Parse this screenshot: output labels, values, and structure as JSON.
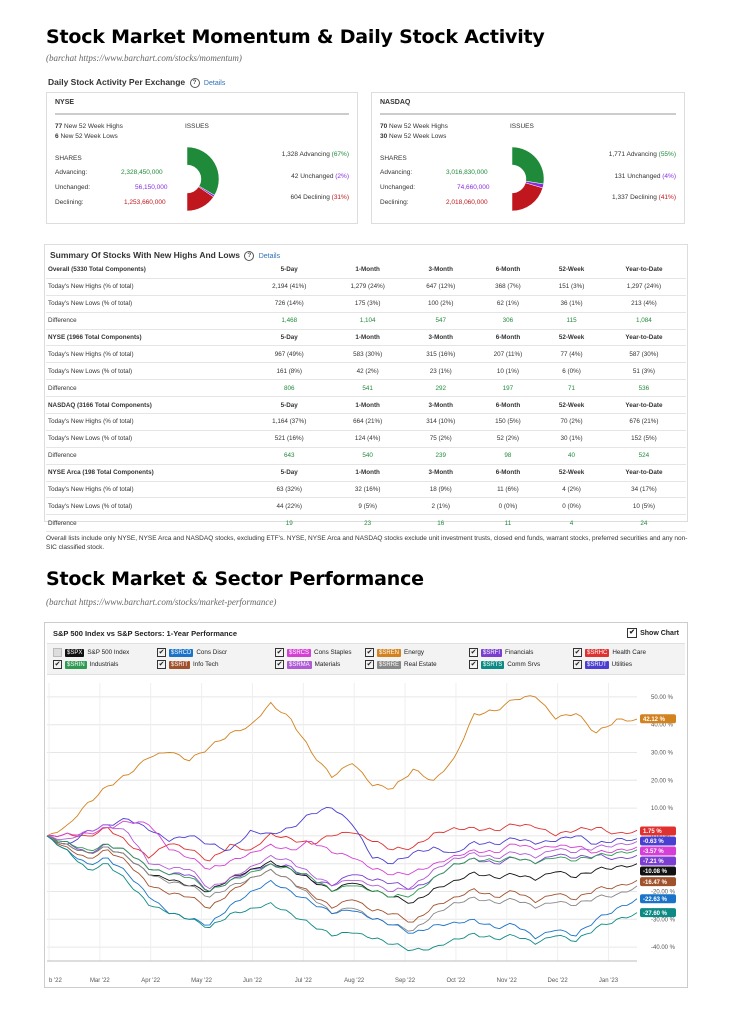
{
  "header1": {
    "title": "Stock Market Momentum & Daily Stock Activity",
    "source": "(barchat https://www.barchart.com/stocks/momentum)"
  },
  "activity": {
    "title": "Daily Stock Activity Per Exchange",
    "details": "Details",
    "help_icon": "question-circle-icon",
    "exchanges": [
      {
        "name": "NYSE",
        "highs_n": "77",
        "highs_label": "New 52 Week Highs",
        "lows_n": "6",
        "lows_label": "New 52 Week Lows",
        "issues_label": "ISSUES",
        "shares_label": "SHARES",
        "advancing_label": "Advancing:",
        "advancing_shares": "2,328,450,000",
        "unchanged_label": "Unchanged:",
        "unchanged_shares": "56,150,000",
        "declining_label": "Declining:",
        "declining_shares": "1,253,660,000",
        "adv_issues": "1,328 Advancing",
        "adv_pct": "(67%)",
        "unc_issues": "42 Unchanged",
        "unc_pct": "(2%)",
        "dec_issues": "604 Declining",
        "dec_pct": "(31%)",
        "donut": {
          "advancing": 67,
          "unchanged": 2,
          "declining": 31
        }
      },
      {
        "name": "NASDAQ",
        "highs_n": "70",
        "highs_label": "New 52 Week Highs",
        "lows_n": "30",
        "lows_label": "New 52 Week Lows",
        "issues_label": "ISSUES",
        "shares_label": "SHARES",
        "advancing_label": "Advancing:",
        "advancing_shares": "3,016,830,000",
        "unchanged_label": "Unchanged:",
        "unchanged_shares": "74,660,000",
        "declining_label": "Declining:",
        "declining_shares": "2,018,060,000",
        "adv_issues": "1,771 Advancing",
        "adv_pct": "(55%)",
        "unc_issues": "131 Unchanged",
        "unc_pct": "(4%)",
        "dec_issues": "1,337 Declining",
        "dec_pct": "(41%)",
        "donut": {
          "advancing": 55,
          "unchanged": 4,
          "declining": 41
        }
      }
    ],
    "colors": {
      "advancing": "#1f8a3a",
      "unchanged": "#8a2be2",
      "declining": "#c0161d"
    }
  },
  "summary": {
    "title": "Summary Of Stocks With New Highs And Lows",
    "details": "Details",
    "rows": [
      [
        "Overall (5330 Total Components)",
        "5-Day",
        "1-Month",
        "3-Month",
        "6-Month",
        "52-Week",
        "Year-to-Date"
      ],
      [
        "Today's New Highs (% of total)",
        "2,194 (41%)",
        "1,279 (24%)",
        "647 (12%)",
        "368 (7%)",
        "151 (3%)",
        "1,297 (24%)"
      ],
      [
        "Today's New Lows (% of total)",
        "726 (14%)",
        "175 (3%)",
        "100 (2%)",
        "62 (1%)",
        "36 (1%)",
        "213 (4%)"
      ],
      [
        "Difference",
        "1,468",
        "1,104",
        "547",
        "306",
        "115",
        "1,084"
      ],
      [
        "NYSE (1966 Total Components)",
        "5-Day",
        "1-Month",
        "3-Month",
        "6-Month",
        "52-Week",
        "Year-to-Date"
      ],
      [
        "Today's New Highs (% of total)",
        "967 (49%)",
        "583 (30%)",
        "315 (16%)",
        "207 (11%)",
        "77 (4%)",
        "587 (30%)"
      ],
      [
        "Today's New Lows (% of total)",
        "161 (8%)",
        "42 (2%)",
        "23 (1%)",
        "10 (1%)",
        "6 (0%)",
        "51 (3%)"
      ],
      [
        "Difference",
        "806",
        "541",
        "292",
        "197",
        "71",
        "536"
      ],
      [
        "NASDAQ (3166 Total Components)",
        "5-Day",
        "1-Month",
        "3-Month",
        "6-Month",
        "52-Week",
        "Year-to-Date"
      ],
      [
        "Today's New Highs (% of total)",
        "1,164 (37%)",
        "664 (21%)",
        "314 (10%)",
        "150 (5%)",
        "70 (2%)",
        "676 (21%)"
      ],
      [
        "Today's New Lows (% of total)",
        "521 (16%)",
        "124 (4%)",
        "75 (2%)",
        "52 (2%)",
        "30 (1%)",
        "152 (5%)"
      ],
      [
        "Difference",
        "643",
        "540",
        "239",
        "98",
        "40",
        "524"
      ],
      [
        "NYSE Arca (198 Total Components)",
        "5-Day",
        "1-Month",
        "3-Month",
        "6-Month",
        "52-Week",
        "Year-to-Date"
      ],
      [
        "Today's New Highs (% of total)",
        "63 (32%)",
        "32 (16%)",
        "18 (9%)",
        "11 (6%)",
        "4 (2%)",
        "34 (17%)"
      ],
      [
        "Today's New Lows (% of total)",
        "44 (22%)",
        "9 (5%)",
        "2 (1%)",
        "0 (0%)",
        "0 (0%)",
        "10 (5%)"
      ],
      [
        "Difference",
        "19",
        "23",
        "16",
        "11",
        "4",
        "24"
      ]
    ],
    "note": "Overall lists include only NYSE, NYSE Arca and NASDAQ stocks, excluding ETF's. NYSE, NYSE Arca and NASDAQ stocks exclude unit investment trusts, closed end funds, warrant stocks, preferred securities and any non-SIC classified stock."
  },
  "header2": {
    "title": "Stock Market & Sector Performance",
    "source": "(barchat https://www.barchart.com/stocks/market-performance)"
  },
  "chart_data": {
    "type": "line",
    "title": "S&P 500 Index vs S&P Sectors: 1-Year Performance",
    "show_chart_label": "Show Chart",
    "x_ticks": [
      "b '22",
      "Mar '22",
      "Apr '22",
      "May '22",
      "Jun '22",
      "Jul '22",
      "Aug '22",
      "Sep '22",
      "Oct '22",
      "Nov '22",
      "Dec '22",
      "Jan '23"
    ],
    "y_ticks": [
      "50.00 %",
      "40.00 %",
      "30.00 %",
      "20.00 %",
      "10.00 %",
      "0.00 %",
      "-10.00 %",
      "-20.00 %",
      "-30.00 %",
      "-40.00 %"
    ],
    "ylim": [
      -45,
      55
    ],
    "grid": true,
    "legend": [
      {
        "symbol": "$SPX",
        "name": "S&P 500 Index",
        "color": "#111111",
        "checked": false
      },
      {
        "symbol": "$SRCD",
        "name": "Cons Discr",
        "color": "#1a73c9",
        "checked": true
      },
      {
        "symbol": "$SRCS",
        "name": "Cons Staples",
        "color": "#d63fd6",
        "checked": true
      },
      {
        "symbol": "$SREN",
        "name": "Energy",
        "color": "#d2821e",
        "checked": true
      },
      {
        "symbol": "$SRFI",
        "name": "Financials",
        "color": "#7a3fd1",
        "checked": true
      },
      {
        "symbol": "$SRHC",
        "name": "Health Care",
        "color": "#e03131",
        "checked": true
      },
      {
        "symbol": "$SRIN",
        "name": "Industrials",
        "color": "#2e9a52",
        "checked": true
      },
      {
        "symbol": "$SRIT",
        "name": "Info Tech",
        "color": "#a0522d",
        "checked": true
      },
      {
        "symbol": "$SRMA",
        "name": "Materials",
        "color": "#b05bd6",
        "checked": true
      },
      {
        "symbol": "$SRRE",
        "name": "Real Estate",
        "color": "#888888",
        "checked": true
      },
      {
        "symbol": "$SRTS",
        "name": "Comm Srvs",
        "color": "#0e8a84",
        "checked": true
      },
      {
        "symbol": "$SRUT",
        "name": "Utilities",
        "color": "#4b3fd1",
        "checked": true
      }
    ],
    "end_labels": [
      {
        "text": "42.12 %",
        "value": 42.12,
        "color": "#d2821e"
      },
      {
        "text": "1.75 %",
        "value": 1.75,
        "color": "#e03131"
      },
      {
        "text": "-0.63 %",
        "value": -0.63,
        "color": "#4b3fd1"
      },
      {
        "text": "-3.57 %",
        "value": -3.57,
        "color": "#d63fd6"
      },
      {
        "text": "-7.21 %",
        "value": -7.21,
        "color": "#7a3fd1"
      },
      {
        "text": "-10.08 %",
        "value": -10.08,
        "color": "#111111"
      },
      {
        "text": "-16.47 %",
        "value": -16.47,
        "color": "#a0522d"
      },
      {
        "text": "-22.63 %",
        "value": -22.63,
        "color": "#1a73c9"
      },
      {
        "text": "-27.60 %",
        "value": -27.6,
        "color": "#0e8a84"
      }
    ],
    "series": [
      {
        "name": "Energy",
        "color": "#d2821e",
        "values": [
          0,
          4,
          12,
          18,
          22,
          28,
          30,
          27,
          32,
          37,
          40,
          48,
          42,
          30,
          21,
          26,
          18,
          17,
          24,
          20,
          28,
          44,
          45,
          49,
          50,
          42,
          44,
          37,
          42,
          42
        ]
      },
      {
        "name": "Health Care",
        "color": "#e03131",
        "values": [
          0,
          1,
          0,
          3,
          -3,
          -8,
          -3,
          -5,
          -9,
          -3,
          -5,
          1,
          -1,
          -3,
          0,
          1,
          -2,
          -5,
          -4,
          1,
          3,
          3,
          2,
          4,
          3,
          0,
          2,
          3,
          1,
          2
        ]
      },
      {
        "name": "Utilities",
        "color": "#4b3fd1",
        "values": [
          0,
          -3,
          2,
          4,
          6,
          2,
          -2,
          0,
          -3,
          -5,
          2,
          1,
          3,
          8,
          10,
          4,
          -8,
          -10,
          -6,
          -4,
          -6,
          -2,
          -3,
          -1,
          -3,
          -2,
          0,
          -3,
          -1,
          -1
        ]
      },
      {
        "name": "Cons Staples",
        "color": "#d63fd6",
        "values": [
          0,
          1,
          1,
          3,
          5,
          4,
          -5,
          -8,
          -12,
          -9,
          -6,
          -3,
          -5,
          -2,
          -6,
          -8,
          -12,
          -14,
          -13,
          -10,
          -7,
          -5,
          -6,
          -3,
          -5,
          -4,
          -4,
          -6,
          -5,
          -4
        ]
      },
      {
        "name": "Financials",
        "color": "#7a3fd1",
        "values": [
          0,
          -2,
          -6,
          -3,
          -6,
          -12,
          -14,
          -14,
          -20,
          -16,
          -12,
          -10,
          -11,
          -16,
          -18,
          -14,
          -16,
          -17,
          -19,
          -15,
          -10,
          -8,
          -10,
          -8,
          -10,
          -7,
          -8,
          -7,
          -8,
          -7
        ]
      },
      {
        "name": "S&P 500 Index",
        "color": "#111111",
        "values": [
          0,
          -3,
          -6,
          -4,
          -8,
          -14,
          -16,
          -18,
          -20,
          -15,
          -12,
          -9,
          -12,
          -16,
          -20,
          -17,
          -20,
          -22,
          -24,
          -19,
          -16,
          -13,
          -15,
          -14,
          -16,
          -13,
          -15,
          -12,
          -11,
          -10
        ]
      },
      {
        "name": "Info Tech",
        "color": "#a0522d",
        "values": [
          0,
          -4,
          -8,
          -5,
          -10,
          -18,
          -21,
          -22,
          -26,
          -20,
          -15,
          -12,
          -16,
          -21,
          -26,
          -23,
          -27,
          -28,
          -31,
          -25,
          -22,
          -19,
          -22,
          -20,
          -24,
          -21,
          -23,
          -19,
          -18,
          -16
        ]
      },
      {
        "name": "Industrials",
        "color": "#2e9a52",
        "values": [
          0,
          -2,
          -5,
          -3,
          -6,
          -12,
          -14,
          -15,
          -20,
          -16,
          -13,
          -10,
          -12,
          -15,
          -20,
          -18,
          -20,
          -22,
          -21,
          -15,
          -10,
          -8,
          -9,
          -8,
          -10,
          -8,
          -9,
          -7,
          -6,
          -5
        ]
      },
      {
        "name": "Materials",
        "color": "#b05bd6",
        "values": [
          0,
          -1,
          2,
          4,
          1,
          -10,
          -12,
          -12,
          -19,
          -15,
          -11,
          -7,
          -9,
          -14,
          -18,
          -16,
          -18,
          -20,
          -18,
          -12,
          -8,
          -6,
          -8,
          -6,
          -8,
          -5,
          -6,
          -4,
          -3,
          -2
        ]
      },
      {
        "name": "Real Estate",
        "color": "#888888",
        "values": [
          0,
          -3,
          -6,
          -4,
          -8,
          -14,
          -17,
          -18,
          -22,
          -18,
          -15,
          -12,
          -16,
          -22,
          -28,
          -26,
          -30,
          -32,
          -34,
          -28,
          -24,
          -22,
          -24,
          -23,
          -26,
          -24,
          -25,
          -22,
          -21,
          -18
        ]
      },
      {
        "name": "Cons Discr",
        "color": "#1a73c9",
        "values": [
          0,
          -5,
          -10,
          -8,
          -14,
          -22,
          -28,
          -30,
          -32,
          -25,
          -20,
          -16,
          -20,
          -24,
          -28,
          -27,
          -30,
          -32,
          -35,
          -32,
          -31,
          -30,
          -33,
          -32,
          -37,
          -34,
          -36,
          -30,
          -26,
          -22.6
        ]
      },
      {
        "name": "Comm Srvs",
        "color": "#0e8a84",
        "values": [
          0,
          -5,
          -12,
          -10,
          -17,
          -25,
          -28,
          -30,
          -33,
          -28,
          -26,
          -24,
          -28,
          -32,
          -36,
          -35,
          -37,
          -39,
          -41,
          -40,
          -37,
          -35,
          -37,
          -36,
          -39,
          -36,
          -38,
          -33,
          -30,
          -27.6
        ]
      }
    ]
  }
}
